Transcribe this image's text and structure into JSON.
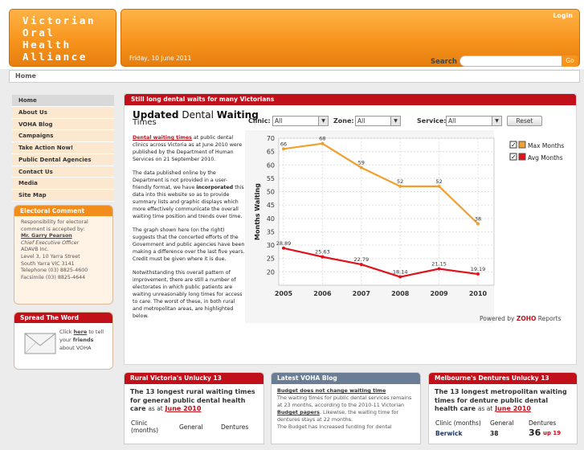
{
  "header": {
    "logo_text": "Victorian\nOral\nHealth\nAlliance",
    "date": "Friday, 10 June 2011",
    "login": "Login",
    "search_label": "Search",
    "search_button": "Go"
  },
  "breadcrumb": "Home",
  "sidebar": {
    "items": [
      "Home",
      "About Us",
      "VOHA Blog",
      "Campaigns",
      "Take Action Now!",
      "Public Dental Agencies",
      "Contact Us",
      "Media",
      "Site Map"
    ],
    "electoral": {
      "title": "Electoral Comment",
      "intro": "Responsibility for electoral comment is accepted by:",
      "name": "Mr. Garry Pearson",
      "role": "Chief Executive Officer",
      "org": "ADAVB Inc.",
      "address1": "Level 3, 10 Yarra Street",
      "address2": "South Yarra VIC 3141",
      "phone": "Telephone (03) 8825-4600",
      "fax": "Facsimile (03) 8825-4644"
    },
    "spread": {
      "title": "Spread The Word",
      "text1": "Click",
      "here": "here",
      "text2": "to tell",
      "text3": "your",
      "friends": "friends",
      "text4": "about VOHA"
    }
  },
  "main": {
    "header": "Still long dental waits for many Victorians",
    "title_bold": "Updated",
    "title_normal": "Dental",
    "title_bold2": "Waiting",
    "subtitle": "Times",
    "p1_link": "Dental waiting times",
    "p1": " at public dental clinics across Victoria as at June 2010 were published by the Department of Human Services on 21 September 2010.",
    "p2a": "The data published online by the Department is not provided in a user-friendly format, we have ",
    "p2b": "incorporated",
    "p2c": " this data into this website so as to provide summary lists and graphic displays which more effectively communicate the overall waiting time position and trends over time.",
    "p3": "The graph shown here (on the right) suggests that the concerted efforts of the Government and public agencies have been making a difference over the last five years.  Credit must be given where it is due.",
    "p4": "Notwithstanding this overall pattern of improvement, there are still a number of electorates in which public patients are waiting unreasonably long times for access to care.  The worst of these, in both rural and metropolitan areas, are highlighted below."
  },
  "filters": {
    "clinic_label": "Clinic:",
    "clinic_value": "All",
    "zone_label": "Zone:",
    "zone_value": "All",
    "service_label": "Service:",
    "service_value": "All",
    "reset": "Reset"
  },
  "chart_data": {
    "type": "line",
    "x": [
      2005,
      2006,
      2007,
      2008,
      2009,
      2010
    ],
    "ylabel": "Months Waiting",
    "ylim": [
      15,
      70
    ],
    "yticks": [
      20,
      25,
      30,
      35,
      40,
      45,
      50,
      55,
      60,
      65,
      70
    ],
    "series": [
      {
        "name": "Max Months",
        "color": "#f0a030",
        "values": [
          66,
          68,
          59,
          52,
          52,
          38
        ]
      },
      {
        "name": "Avg Months",
        "color": "#e0121c",
        "values": [
          28.89,
          25.63,
          22.79,
          18.14,
          21.15,
          19.19
        ]
      }
    ],
    "grid": true,
    "legend": "top-right"
  },
  "powered": {
    "prefix": "Powered by",
    "brand": "ZOHO",
    "suffix": "Reports"
  },
  "bottom": {
    "rural": {
      "title": "Rural Victoria's Unlucky 13",
      "text": "The 13 longest rural waiting times for general public dental health care",
      "asat": "as at",
      "date": "June 2010",
      "col1": "Clinic (months)",
      "col2": "General",
      "col3": "Dentures"
    },
    "blog": {
      "title": "Latest VOHA Blog",
      "link": "Budget does not change waiting time",
      "text1": "The waiting times for public dental services remains at 23 months, according to the 2010-11 Victorian ",
      "papers": "Budget papers",
      "text2": ". Likewise, the waiting time for dentures stays at 22 months.",
      "text3": "The Budget has increased funding for dental"
    },
    "metro": {
      "title": "Melbourne's Dentures Unlucky 13",
      "text": "The 13 longest metropolitan waiting times for denture public dental health care",
      "asat": "as at",
      "date": "June 2010",
      "col1": "Clinic (months)",
      "col2": "General",
      "col3": "Dentures",
      "row_name": "Berwick",
      "row_general": "38",
      "row_dentures": "36",
      "row_change": "up 19"
    }
  }
}
